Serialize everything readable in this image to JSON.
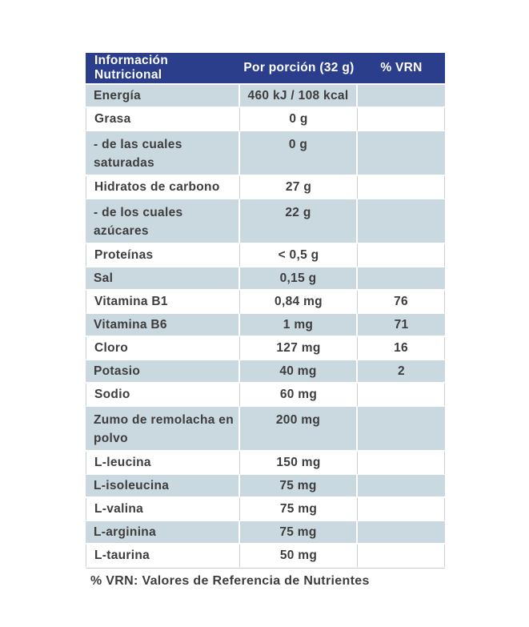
{
  "table": {
    "header": {
      "col1": "Información Nutricional",
      "col2": "Por porción (32 g)",
      "col3": "% VRN"
    },
    "rows": [
      {
        "name": "Energía",
        "value": "460 kJ / 108 kcal",
        "vrn": ""
      },
      {
        "name": "Grasa",
        "value": "0 g",
        "vrn": ""
      },
      {
        "name": "- de las cuales saturadas",
        "value": "0 g",
        "vrn": ""
      },
      {
        "name": "Hidratos de carbono",
        "value": "27 g",
        "vrn": ""
      },
      {
        "name": "- de los cuales azúcares",
        "value": "22 g",
        "vrn": ""
      },
      {
        "name": "Proteínas",
        "value": "< 0,5 g",
        "vrn": ""
      },
      {
        "name": "Sal",
        "value": "0,15 g",
        "vrn": ""
      },
      {
        "name": "Vitamina B1",
        "value": "0,84 mg",
        "vrn": "76"
      },
      {
        "name": "Vitamina B6",
        "value": "1 mg",
        "vrn": "71"
      },
      {
        "name": "Cloro",
        "value": "127 mg",
        "vrn": "16"
      },
      {
        "name": "Potasio",
        "value": "40 mg",
        "vrn": "2"
      },
      {
        "name": "Sodio",
        "value": "60 mg",
        "vrn": ""
      },
      {
        "name": "Zumo de remolacha en polvo",
        "value": "200 mg",
        "vrn": ""
      },
      {
        "name": "L-leucina",
        "value": "150 mg",
        "vrn": ""
      },
      {
        "name": "L-isoleucina",
        "value": "75 mg",
        "vrn": ""
      },
      {
        "name": "L-valina",
        "value": "75 mg",
        "vrn": ""
      },
      {
        "name": "L-arginina",
        "value": "75 mg",
        "vrn": ""
      },
      {
        "name": "L-taurina",
        "value": "50 mg",
        "vrn": ""
      }
    ],
    "footnote": "% VRN: Valores de Referencia de Nutrientes"
  },
  "colors": {
    "header_bg": "#2b3e8c",
    "header_text": "#ffffff",
    "row_alt_bg": "#cad8e0",
    "row_bg": "#ffffff",
    "text": "#3d3d3d",
    "separator": "#c6cfd4"
  }
}
